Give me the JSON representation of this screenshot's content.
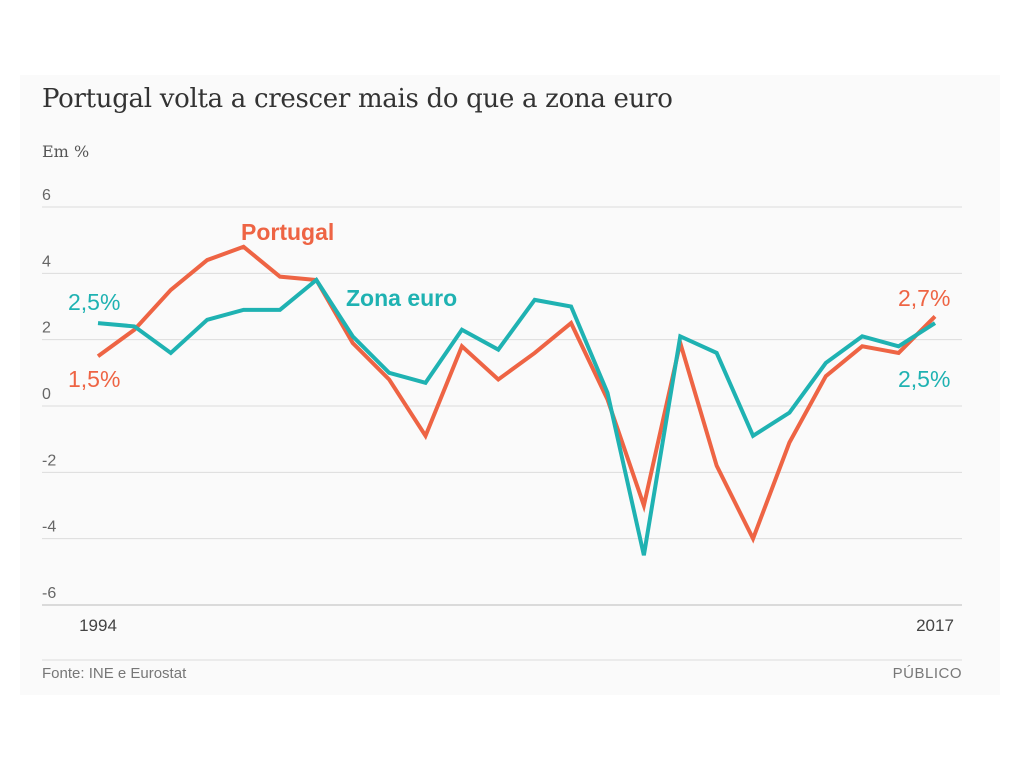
{
  "chart_data": {
    "type": "line",
    "title": "Portugal volta a crescer mais do que a zona euro",
    "ylabel": "Em %",
    "xlabel": "",
    "ylim": [
      -6,
      6
    ],
    "yticks": [
      "6",
      "4",
      "2",
      "0",
      "-2",
      "-4",
      "-6"
    ],
    "ytick_values": [
      6,
      4,
      2,
      0,
      -2,
      -4,
      -6
    ],
    "xtick_labels": [
      "1994",
      "2017"
    ],
    "x": [
      1994,
      1995,
      1996,
      1997,
      1998,
      1999,
      2000,
      2001,
      2002,
      2003,
      2004,
      2005,
      2006,
      2007,
      2008,
      2009,
      2010,
      2011,
      2012,
      2013,
      2014,
      2015,
      2016,
      2017
    ],
    "grid": true,
    "series": [
      {
        "name": "Portugal",
        "color": "#ee6444",
        "values": [
          1.5,
          2.3,
          3.5,
          4.4,
          4.8,
          3.9,
          3.8,
          1.9,
          0.8,
          -0.9,
          1.8,
          0.8,
          1.6,
          2.5,
          0.2,
          -3.0,
          1.9,
          -1.8,
          -4.0,
          -1.1,
          0.9,
          1.8,
          1.6,
          2.7
        ],
        "start_label": "1,5%",
        "end_label": "2,7%"
      },
      {
        "name": "Zona euro",
        "color": "#1fb2b2",
        "values": [
          2.5,
          2.4,
          1.6,
          2.6,
          2.9,
          2.9,
          3.8,
          2.1,
          1.0,
          0.7,
          2.3,
          1.7,
          3.2,
          3.0,
          0.4,
          -4.5,
          2.1,
          1.6,
          -0.9,
          -0.2,
          1.3,
          2.1,
          1.8,
          2.5
        ],
        "start_label": "2,5%",
        "end_label": "2,5%"
      }
    ],
    "source": "Fonte: INE e Eurostat",
    "brand": "PÚBLICO"
  }
}
